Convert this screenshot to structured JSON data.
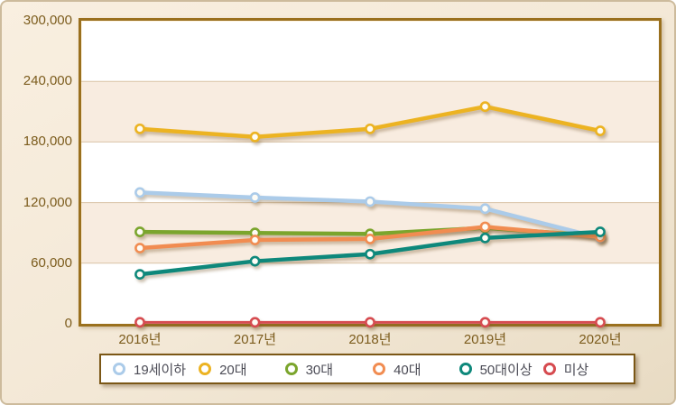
{
  "chart_data": {
    "type": "line",
    "title": "",
    "xlabel": "",
    "ylabel": "",
    "categories": [
      "2016년",
      "2017년",
      "2018년",
      "2019년",
      "2020년"
    ],
    "series": [
      {
        "name": "19세이하",
        "color": "#abcbe9",
        "values": [
          130000,
          125000,
          121000,
          114000,
          85000
        ]
      },
      {
        "name": "20대",
        "color": "#ecb322",
        "values": [
          193000,
          185000,
          193000,
          215000,
          191000
        ]
      },
      {
        "name": "30대",
        "color": "#7ba52d",
        "values": [
          91000,
          90000,
          89000,
          95000,
          87000
        ]
      },
      {
        "name": "40대",
        "color": "#f18c51",
        "values": [
          75000,
          83000,
          84000,
          96000,
          86000
        ]
      },
      {
        "name": "50대이상",
        "color": "#0e887b",
        "values": [
          49000,
          62000,
          69000,
          85000,
          91000
        ]
      },
      {
        "name": "미상",
        "color": "#d64b50",
        "values": [
          1500,
          1500,
          1500,
          1500,
          1500
        ]
      }
    ],
    "ylim": [
      0,
      300000
    ],
    "ytick_interval": 60000,
    "yticks": [
      "0",
      "60,000",
      "120,000",
      "180,000",
      "240,000",
      "300,000"
    ],
    "grid": "horizontal-bands",
    "legend_position": "bottom"
  },
  "colors": {
    "plot_border": "#9a701e",
    "gridline": "#d9c3a6",
    "band": "#f8ece0",
    "tick_label": "#7c5c1d",
    "legend_text": "#4b4b55",
    "legend_border": "#7b5716",
    "marker_fill": "#fefcf5",
    "page_background_top": "#f9efe0",
    "page_background_bottom": "#e8dbc3"
  }
}
